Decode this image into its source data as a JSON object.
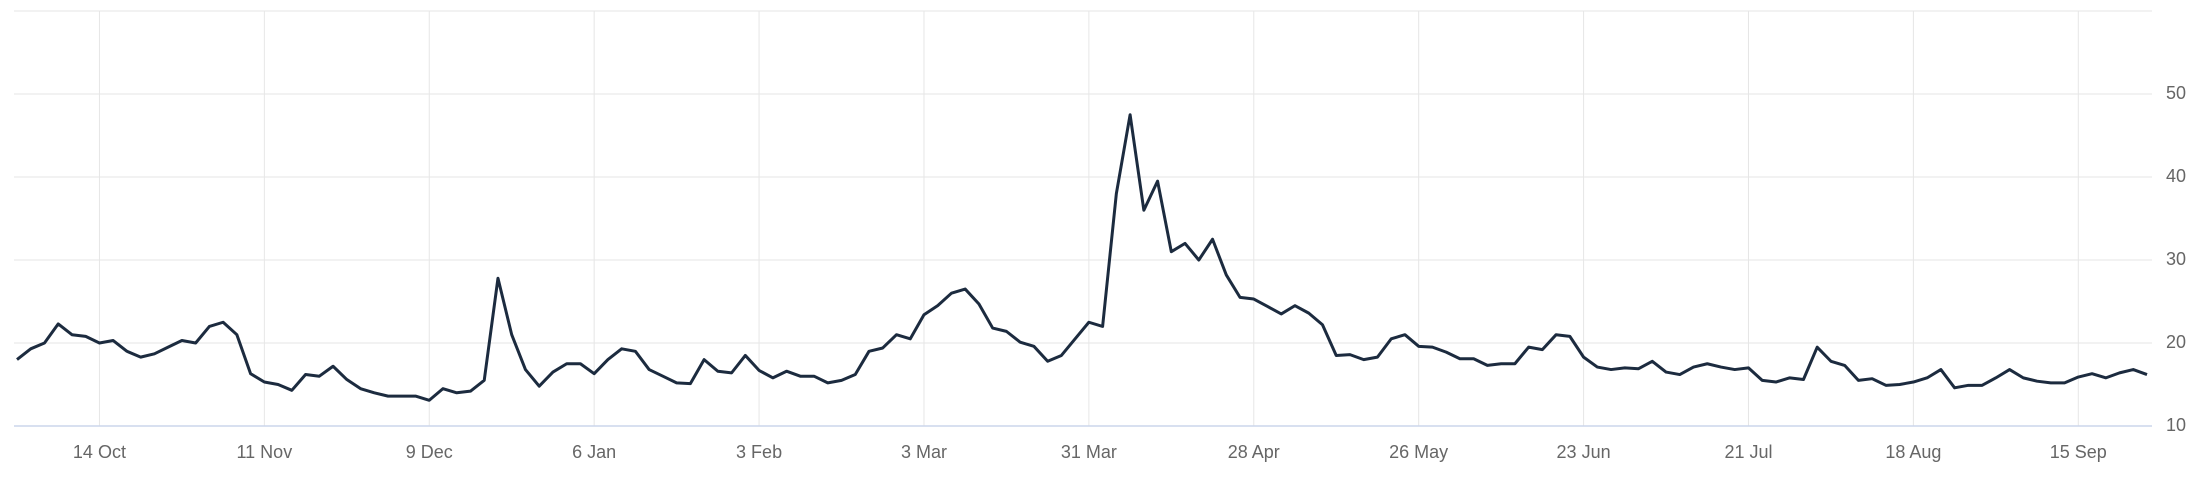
{
  "chart_data": {
    "type": "line",
    "categories": [
      null,
      null,
      null,
      null,
      null,
      null,
      "14 Oct",
      null,
      null,
      null,
      null,
      null,
      null,
      null,
      null,
      null,
      null,
      null,
      "11 Nov",
      null,
      null,
      null,
      null,
      null,
      null,
      null,
      null,
      null,
      null,
      null,
      "9 Dec",
      null,
      null,
      null,
      null,
      null,
      null,
      null,
      null,
      null,
      null,
      null,
      "6 Jan",
      null,
      null,
      null,
      null,
      null,
      null,
      null,
      null,
      null,
      null,
      null,
      "3 Feb",
      null,
      null,
      null,
      null,
      null,
      null,
      null,
      null,
      null,
      null,
      null,
      "3 Mar",
      null,
      null,
      null,
      null,
      null,
      null,
      null,
      null,
      null,
      null,
      null,
      "31 Mar",
      null,
      null,
      null,
      null,
      null,
      null,
      null,
      null,
      null,
      null,
      null,
      "28 Apr",
      null,
      null,
      null,
      null,
      null,
      null,
      null,
      null,
      null,
      null,
      null,
      "26 May",
      null,
      null,
      null,
      null,
      null,
      null,
      null,
      null,
      null,
      null,
      null,
      "23 Jun",
      null,
      null,
      null,
      null,
      null,
      null,
      null,
      null,
      null,
      null,
      null,
      "21 Jul",
      null,
      null,
      null,
      null,
      null,
      null,
      null,
      null,
      null,
      null,
      null,
      "18 Aug",
      null,
      null,
      null,
      null,
      null,
      null,
      null,
      null,
      null,
      null,
      null,
      "15 Sep",
      null,
      null,
      null,
      null,
      null
    ],
    "values": [
      18,
      19.3,
      20,
      22.3,
      21,
      20.8,
      20,
      20.3,
      19,
      18.3,
      18.7,
      19.5,
      20.3,
      20,
      22,
      22.5,
      21,
      16.3,
      15.3,
      15,
      14.3,
      16.2,
      16,
      17.2,
      15.6,
      14.5,
      14,
      13.6,
      13.6,
      13.6,
      13.1,
      14.5,
      14,
      14.2,
      15.5,
      27.8,
      21,
      16.8,
      14.8,
      16.5,
      17.5,
      17.5,
      16.3,
      18,
      19.3,
      19,
      16.8,
      16,
      15.2,
      15.1,
      18,
      16.6,
      16.4,
      18.5,
      16.7,
      15.8,
      16.6,
      16,
      16,
      15.2,
      15.5,
      16.2,
      19,
      19.4,
      21,
      20.5,
      23.4,
      24.5,
      26,
      26.5,
      24.7,
      21.8,
      21.4,
      20.1,
      19.6,
      17.8,
      18.5,
      20.5,
      22.5,
      22,
      38,
      47.5,
      36,
      39.5,
      31,
      32,
      30,
      32.5,
      28.2,
      25.5,
      25.3,
      24.4,
      23.5,
      24.5,
      23.6,
      22.2,
      18.5,
      18.6,
      18,
      18.3,
      20.5,
      21,
      19.6,
      19.5,
      18.9,
      18.1,
      18.1,
      17.3,
      17.5,
      17.5,
      19.5,
      19.2,
      21,
      20.8,
      18.3,
      17.1,
      16.8,
      17,
      16.9,
      17.8,
      16.5,
      16.2,
      17.1,
      17.5,
      17.1,
      16.8,
      17,
      15.5,
      15.3,
      15.8,
      15.6,
      19.5,
      17.8,
      17.3,
      15.5,
      15.7,
      14.9,
      15,
      15.3,
      15.8,
      16.8,
      14.6,
      14.9,
      14.9,
      15.8,
      16.8,
      15.8,
      15.4,
      15.2,
      15.2,
      15.9,
      16.3,
      15.8,
      16.4,
      16.8,
      16.2
    ],
    "color": "#1c2b3f",
    "ylim": [
      10,
      60
    ],
    "yticks": [
      10,
      20,
      30,
      40,
      50
    ],
    "grid": true
  }
}
